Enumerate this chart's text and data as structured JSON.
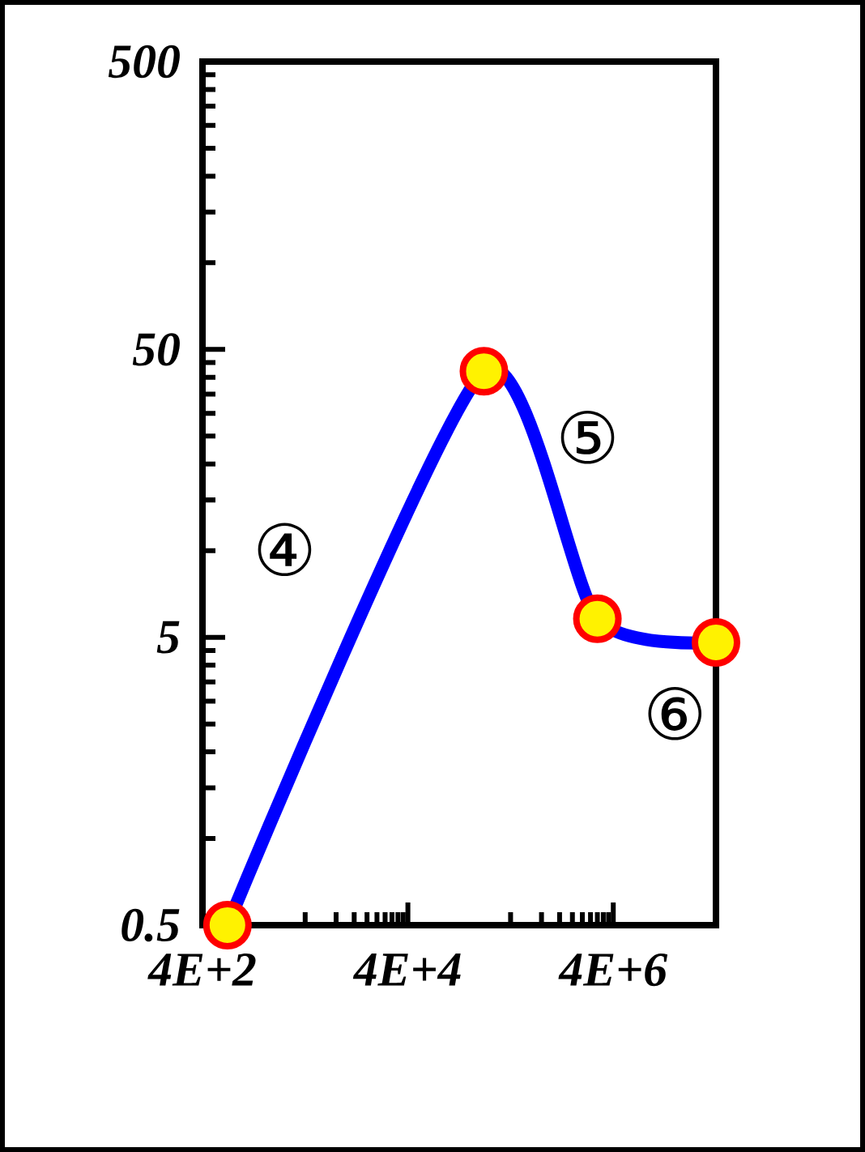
{
  "chart_data": {
    "type": "line",
    "x": [
      700,
      220000,
      2800000,
      40000000
    ],
    "series": [
      {
        "color": "#0000ff",
        "values": [
          0.5,
          42,
          5.8,
          4.8
        ]
      }
    ],
    "log": "xy",
    "marker": "circle",
    "grid": false,
    "xlim": [
      400,
      40000000
    ],
    "ylim": [
      0.5,
      500
    ],
    "xticks": [
      {
        "value": 400,
        "label": "4E+2"
      },
      {
        "value": 4000,
        "label": null
      },
      {
        "value": 8000,
        "label": null
      },
      {
        "value": 12000,
        "label": null
      },
      {
        "value": 16000,
        "label": null
      },
      {
        "value": 20000,
        "label": null
      },
      {
        "value": 24000,
        "label": null
      },
      {
        "value": 28000,
        "label": null
      },
      {
        "value": 32000,
        "label": null
      },
      {
        "value": 36000,
        "label": null
      },
      {
        "value": 40000,
        "label": "4E+4"
      },
      {
        "value": 400000,
        "label": null
      },
      {
        "value": 800000,
        "label": null
      },
      {
        "value": 1200000,
        "label": null
      },
      {
        "value": 1600000,
        "label": null
      },
      {
        "value": 2000000,
        "label": null
      },
      {
        "value": 2400000,
        "label": null
      },
      {
        "value": 2800000,
        "label": null
      },
      {
        "value": 3200000,
        "label": null
      },
      {
        "value": 3600000,
        "label": null
      },
      {
        "value": 4000000,
        "label": "4E+6"
      },
      {
        "value": 40000000,
        "label": null
      }
    ],
    "yticks": [
      0.5,
      {
        "value": 1,
        "label": null
      },
      {
        "value": 1.5,
        "label": null
      },
      {
        "value": 2,
        "label": null
      },
      {
        "value": 2.5,
        "label": null
      },
      {
        "value": 3,
        "label": null
      },
      {
        "value": 3.5,
        "label": null
      },
      {
        "value": 4,
        "label": null
      },
      {
        "value": 4.5,
        "label": null
      },
      5,
      {
        "value": 10,
        "label": null
      },
      {
        "value": 15,
        "label": null
      },
      {
        "value": 20,
        "label": null
      },
      {
        "value": 25,
        "label": null
      },
      {
        "value": 30,
        "label": null
      },
      {
        "value": 35,
        "label": null
      },
      {
        "value": 40,
        "label": null
      },
      {
        "value": 45,
        "label": null
      },
      50,
      {
        "value": 100,
        "label": null
      },
      {
        "value": 150,
        "label": null
      },
      {
        "value": 200,
        "label": null
      },
      {
        "value": 250,
        "label": null
      },
      {
        "value": 300,
        "label": null
      },
      {
        "value": 350,
        "label": null
      },
      {
        "value": 400,
        "label": null
      },
      {
        "value": 450,
        "label": null
      },
      500
    ],
    "annotations": [
      "④",
      "⑤",
      "⑥"
    ]
  }
}
